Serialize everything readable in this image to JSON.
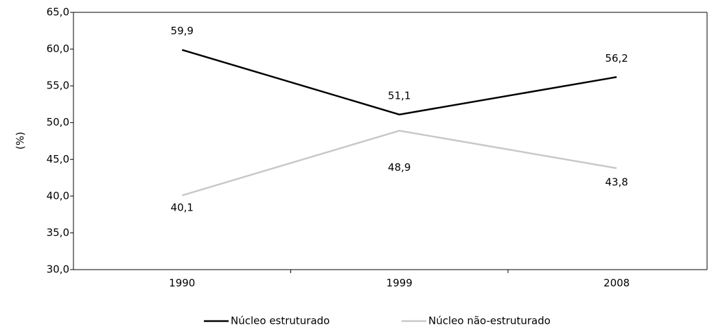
{
  "chart_data": {
    "type": "line",
    "y_label": "(%)",
    "categories": [
      "1990",
      "1999",
      "2008"
    ],
    "series": [
      {
        "name": "Núcleo estruturado",
        "color": "#000000",
        "values": [
          59.9,
          51.1,
          56.2
        ],
        "value_labels": [
          "59,9",
          "51,1",
          "56,2"
        ]
      },
      {
        "name": "Núcleo não-estruturado",
        "color": "#c8c8c8",
        "values": [
          40.1,
          48.9,
          43.8
        ],
        "value_labels": [
          "40,1",
          "48,9",
          "43,8"
        ]
      }
    ],
    "ylim": [
      30,
      65
    ],
    "yticks": [
      {
        "value": 30,
        "label": "30,0"
      },
      {
        "value": 35,
        "label": "35,0"
      },
      {
        "value": 40,
        "label": "40,0"
      },
      {
        "value": 45,
        "label": "45,0"
      },
      {
        "value": 50,
        "label": "50,0"
      },
      {
        "value": 55,
        "label": "55,0"
      },
      {
        "value": 60,
        "label": "60,0"
      },
      {
        "value": 65,
        "label": "65,0"
      }
    ],
    "legend": "bottom"
  }
}
